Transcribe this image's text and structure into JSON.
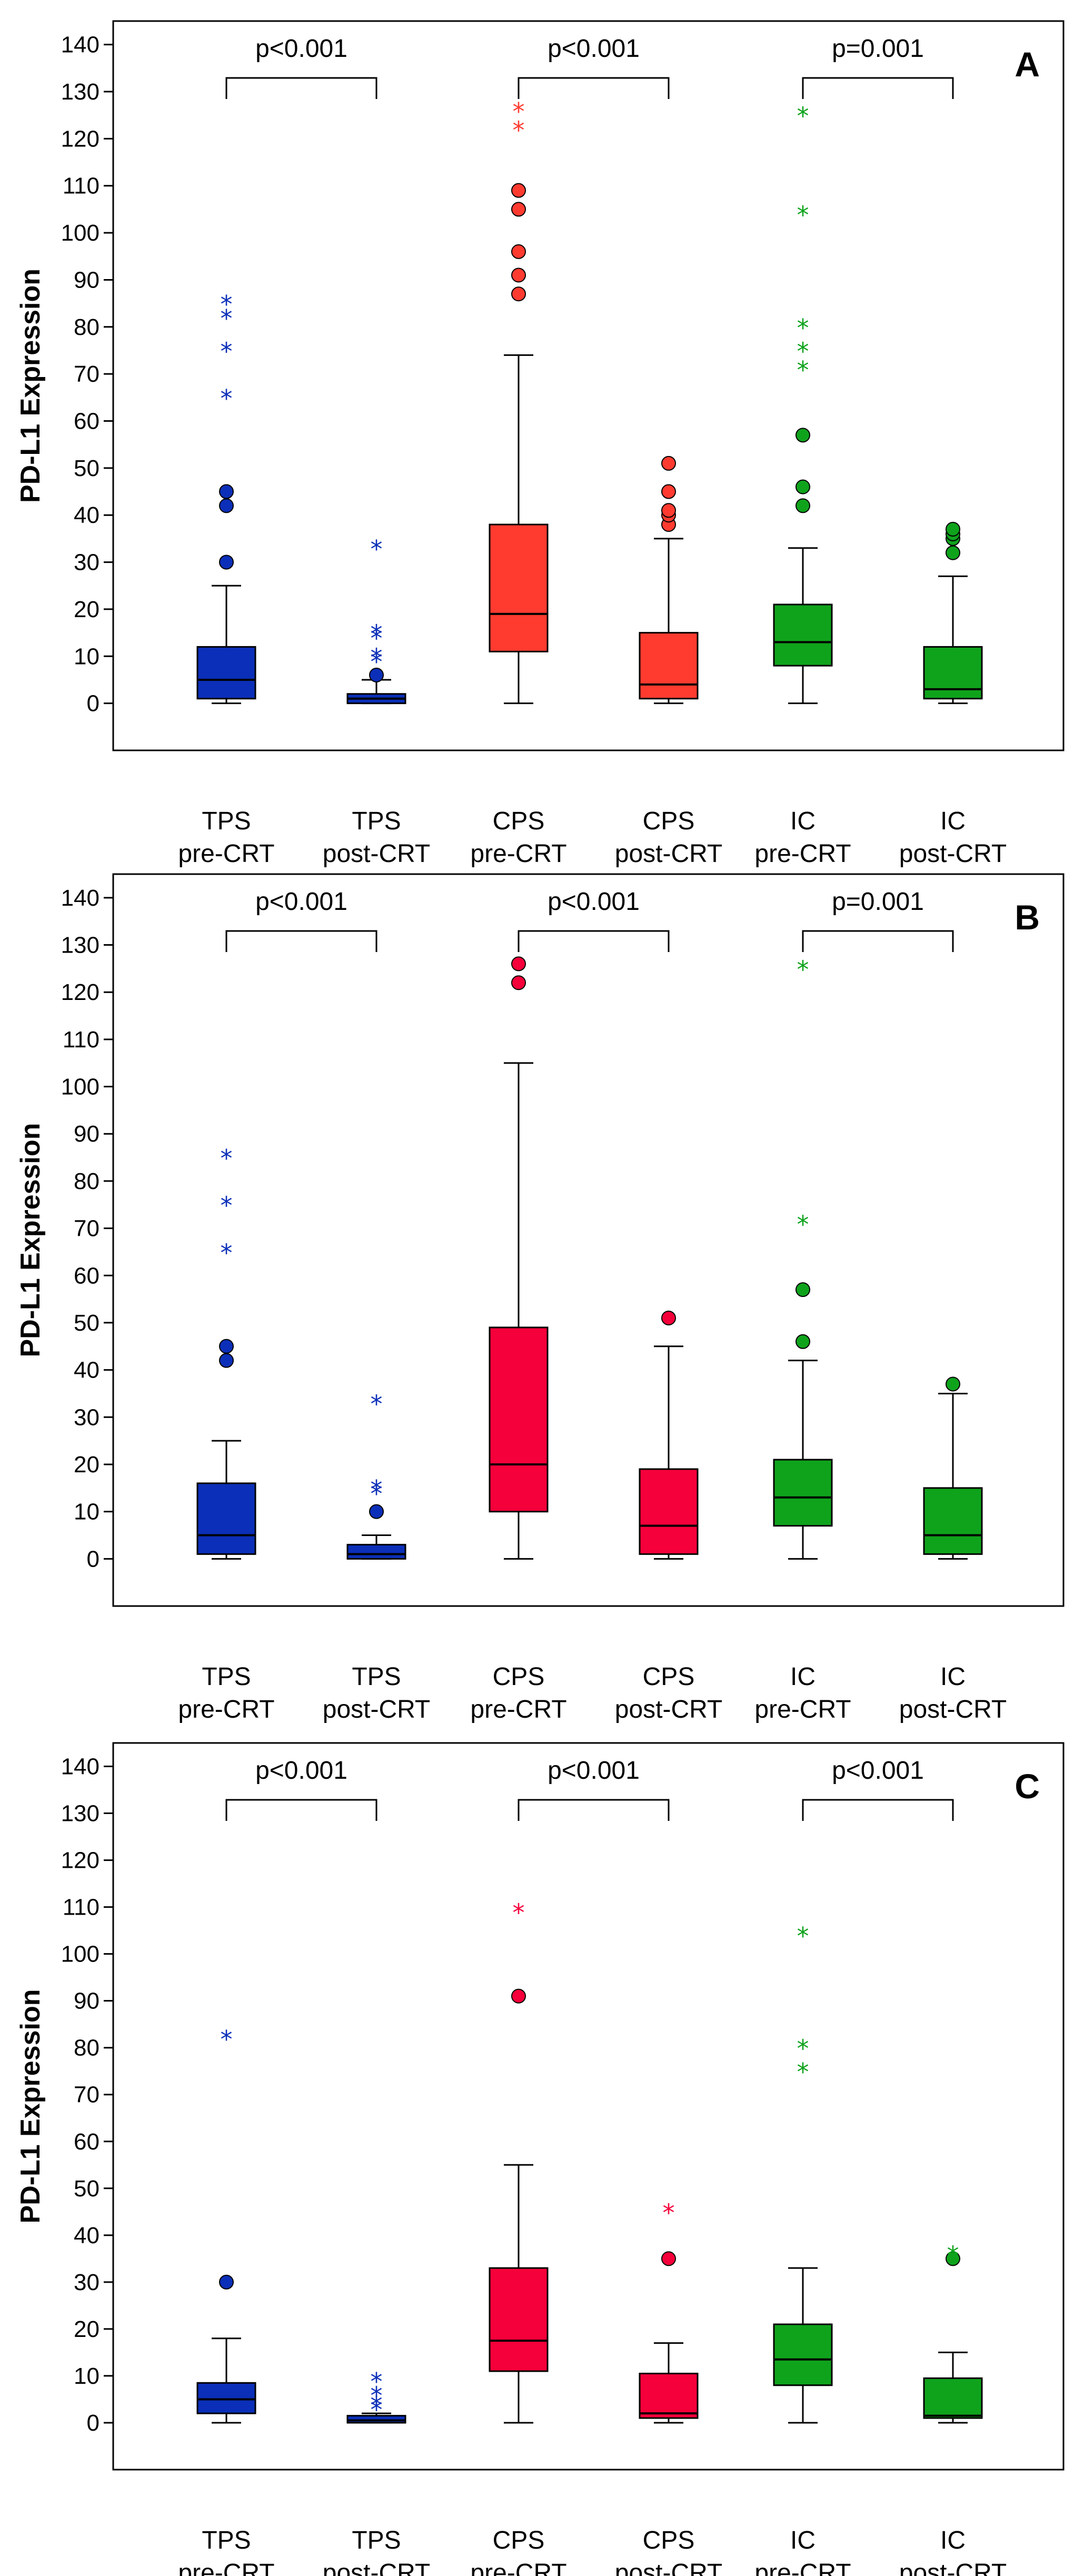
{
  "chart_data": [
    {
      "type": "box",
      "panel_label": "A",
      "ylabel": "PD-L1 Expression",
      "ylim": [
        -10,
        145
      ],
      "yticks": [
        0,
        10,
        20,
        30,
        40,
        50,
        60,
        70,
        80,
        90,
        100,
        110,
        120,
        130,
        140
      ],
      "colors": [
        "#0b2fb8",
        "#0b2fb8",
        "#ff3b30",
        "#ff3b30",
        "#0fa31c",
        "#0fa31c"
      ],
      "categories": [
        {
          "line1": "TPS",
          "line2": "pre-CRT",
          "whisker_low": 0,
          "q1": 1,
          "median": 5,
          "q3": 12,
          "whisker_high": 25,
          "outliers": [
            30,
            42,
            45
          ],
          "extremes": [
            65,
            75,
            82,
            85
          ]
        },
        {
          "line1": "TPS",
          "line2": "post-CRT",
          "whisker_low": 0,
          "q1": 0,
          "median": 1,
          "q3": 2,
          "whisker_high": 5,
          "outliers": [
            6
          ],
          "extremes": [
            9,
            10,
            14,
            15,
            33
          ]
        },
        {
          "line1": "CPS",
          "line2": "pre-CRT",
          "whisker_low": 0,
          "q1": 11,
          "median": 19,
          "q3": 38,
          "whisker_high": 74,
          "outliers": [
            87,
            91,
            96,
            105,
            109
          ],
          "extremes": [
            122,
            126
          ]
        },
        {
          "line1": "CPS",
          "line2": "post-CRT",
          "whisker_low": 0,
          "q1": 1,
          "median": 4,
          "q3": 15,
          "whisker_high": 35,
          "outliers": [
            38,
            40,
            41,
            45,
            51
          ],
          "extremes": []
        },
        {
          "line1": "IC",
          "line2": "pre-CRT",
          "whisker_low": 0,
          "q1": 8,
          "median": 13,
          "q3": 21,
          "whisker_high": 33,
          "outliers": [
            42,
            46,
            57
          ],
          "extremes": [
            71,
            75,
            80,
            104,
            125
          ]
        },
        {
          "line1": "IC",
          "line2": "post-CRT",
          "whisker_low": 0,
          "q1": 1,
          "median": 3,
          "q3": 12,
          "whisker_high": 27,
          "outliers": [
            32,
            35,
            36,
            37
          ],
          "extremes": []
        }
      ],
      "comparisons": [
        {
          "from": 0,
          "to": 1,
          "label": "p<0.001"
        },
        {
          "from": 2,
          "to": 3,
          "label": "p<0.001"
        },
        {
          "from": 4,
          "to": 5,
          "label": "p=0.001"
        }
      ]
    },
    {
      "type": "box",
      "panel_label": "B",
      "ylabel": "PD-L1 Expression",
      "ylim": [
        -10,
        145
      ],
      "yticks": [
        0,
        10,
        20,
        30,
        40,
        50,
        60,
        70,
        80,
        90,
        100,
        110,
        120,
        130,
        140
      ],
      "colors": [
        "#0b2fb8",
        "#0b2fb8",
        "#f5003a",
        "#f5003a",
        "#0fa31c",
        "#0fa31c"
      ],
      "categories": [
        {
          "line1": "TPS",
          "line2": "pre-CRT",
          "whisker_low": 0,
          "q1": 1,
          "median": 5,
          "q3": 16,
          "whisker_high": 25,
          "outliers": [
            42,
            45
          ],
          "extremes": [
            65,
            75,
            85
          ]
        },
        {
          "line1": "TPS",
          "line2": "post-CRT",
          "whisker_low": 0,
          "q1": 0,
          "median": 1,
          "q3": 3,
          "whisker_high": 5,
          "outliers": [
            10
          ],
          "extremes": [
            14,
            15,
            33
          ]
        },
        {
          "line1": "CPS",
          "line2": "pre-CRT",
          "whisker_low": 0,
          "q1": 10,
          "median": 20,
          "q3": 49,
          "whisker_high": 105,
          "outliers": [
            122,
            126
          ],
          "extremes": []
        },
        {
          "line1": "CPS",
          "line2": "post-CRT",
          "whisker_low": 0,
          "q1": 1,
          "median": 7,
          "q3": 19,
          "whisker_high": 45,
          "outliers": [
            51
          ],
          "extremes": []
        },
        {
          "line1": "IC",
          "line2": "pre-CRT",
          "whisker_low": 0,
          "q1": 7,
          "median": 13,
          "q3": 21,
          "whisker_high": 42,
          "outliers": [
            46,
            57
          ],
          "extremes": [
            71,
            125
          ]
        },
        {
          "line1": "IC",
          "line2": "post-CRT",
          "whisker_low": 0,
          "q1": 1,
          "median": 5,
          "q3": 15,
          "whisker_high": 35,
          "outliers": [
            37
          ],
          "extremes": []
        }
      ],
      "comparisons": [
        {
          "from": 0,
          "to": 1,
          "label": "p<0.001"
        },
        {
          "from": 2,
          "to": 3,
          "label": "p<0.001"
        },
        {
          "from": 4,
          "to": 5,
          "label": "p=0.001"
        }
      ]
    },
    {
      "type": "box",
      "panel_label": "C",
      "ylabel": "PD-L1 Expression",
      "ylim": [
        -10,
        145
      ],
      "yticks": [
        0,
        10,
        20,
        30,
        40,
        50,
        60,
        70,
        80,
        90,
        100,
        110,
        120,
        130,
        140
      ],
      "colors": [
        "#0b2fb8",
        "#0b2fb8",
        "#f5003a",
        "#f5003a",
        "#0fa31c",
        "#0fa31c"
      ],
      "categories": [
        {
          "line1": "TPS",
          "line2": "pre-CRT",
          "whisker_low": 0,
          "q1": 2,
          "median": 5,
          "q3": 8.5,
          "whisker_high": 18,
          "outliers": [
            30
          ],
          "extremes": [
            82
          ]
        },
        {
          "line1": "TPS",
          "line2": "post-CRT",
          "whisker_low": 0,
          "q1": 0,
          "median": 0.5,
          "q3": 1.5,
          "whisker_high": 2,
          "outliers": [],
          "extremes": [
            3,
            4,
            6,
            9
          ]
        },
        {
          "line1": "CPS",
          "line2": "pre-CRT",
          "whisker_low": 0,
          "q1": 11,
          "median": 17.5,
          "q3": 33,
          "whisker_high": 55,
          "outliers": [
            91
          ],
          "extremes": [
            109
          ]
        },
        {
          "line1": "CPS",
          "line2": "post-CRT",
          "whisker_low": 0,
          "q1": 1,
          "median": 2,
          "q3": 10.5,
          "whisker_high": 17,
          "outliers": [
            35
          ],
          "extremes": [
            45
          ]
        },
        {
          "line1": "IC",
          "line2": "pre-CRT",
          "whisker_low": 0,
          "q1": 8,
          "median": 13.5,
          "q3": 21,
          "whisker_high": 33,
          "outliers": [],
          "extremes": [
            75,
            80,
            104
          ]
        },
        {
          "line1": "IC",
          "line2": "post-CRT",
          "whisker_low": 0,
          "q1": 1,
          "median": 1.5,
          "q3": 9.5,
          "whisker_high": 15,
          "outliers": [
            35
          ],
          "extremes": [
            36
          ]
        }
      ],
      "comparisons": [
        {
          "from": 0,
          "to": 1,
          "label": "p<0.001"
        },
        {
          "from": 2,
          "to": 3,
          "label": "p<0.001"
        },
        {
          "from": 4,
          "to": 5,
          "label": "p<0.001"
        }
      ]
    }
  ]
}
